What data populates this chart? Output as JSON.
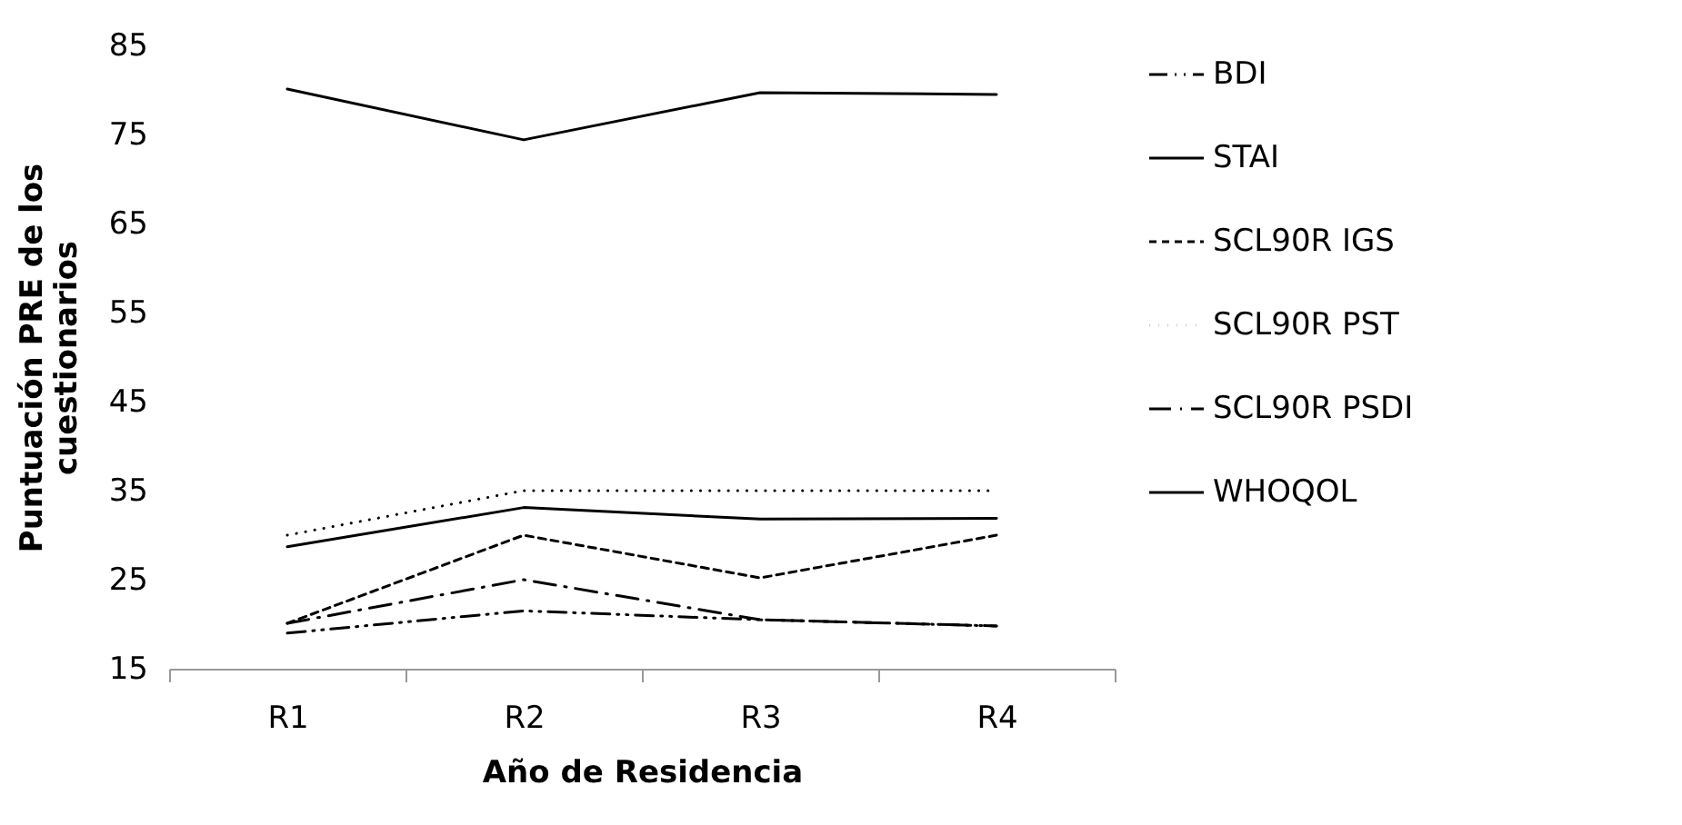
{
  "chart_data": {
    "type": "line",
    "xlabel": "Año de Residencia",
    "ylabel": "Puntuación PRE de los cuestionarios",
    "categories": [
      "R1",
      "R2",
      "R3",
      "R4"
    ],
    "ylim": [
      15,
      85
    ],
    "yticks": [
      15,
      25,
      35,
      45,
      55,
      65,
      75,
      85
    ],
    "grid": false,
    "legend": "right",
    "marker": "none",
    "series": [
      {
        "name": "BDI",
        "color": "#000000",
        "line_style": "dashdotdot",
        "values": [
          19,
          21.5,
          20.5,
          19.8
        ]
      },
      {
        "name": "STAI",
        "color": "#000000",
        "line_style": "solid",
        "values": [
          28.7,
          33.1,
          31.8,
          31.9
        ]
      },
      {
        "name": "SCL90R IGS",
        "color": "#000000",
        "line_style": "dashed",
        "values": [
          20.1,
          30,
          25.2,
          30
        ]
      },
      {
        "name": "SCL90R PST",
        "color": "#000000",
        "line_style": "dotted",
        "values": [
          30,
          35,
          35,
          35
        ]
      },
      {
        "name": "SCL90R PSDI",
        "color": "#000000",
        "line_style": "dashdot",
        "values": [
          20.1,
          25,
          20.5,
          19.8
        ]
      },
      {
        "name": "WHOQOL",
        "color": "#000000",
        "line_style": "solid",
        "values": [
          80.1,
          74.4,
          79.7,
          79.5
        ]
      }
    ]
  }
}
